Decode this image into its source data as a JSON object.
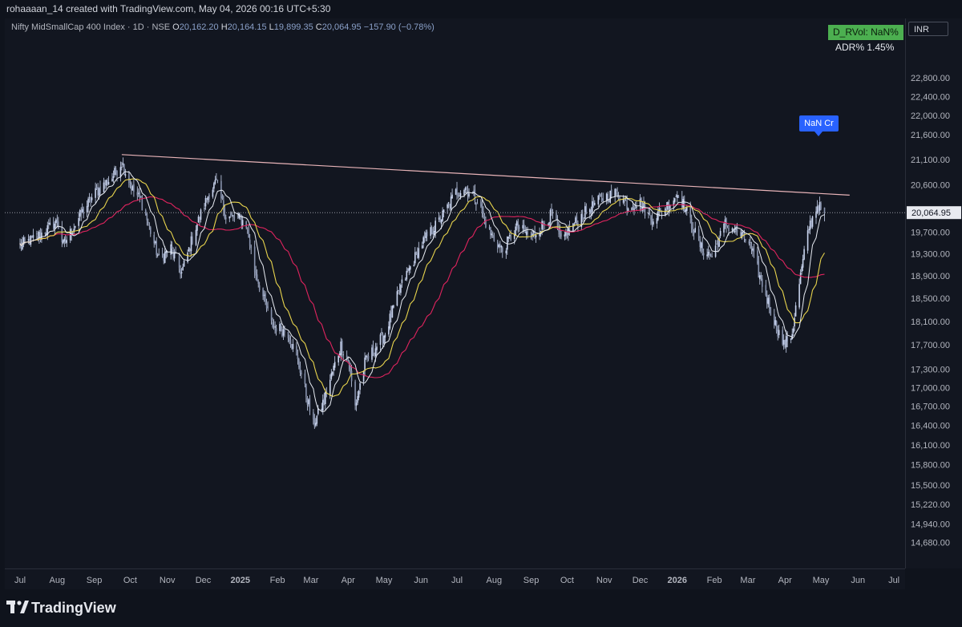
{
  "header": {
    "author_line": "rohaaaan_14 created with TradingView.com, May 04, 2026 00:16 UTC+5:30"
  },
  "legend": {
    "symbol": "Nifty MidSmallCap 400 Index · 1D · NSE",
    "open_label": "O",
    "open_value": "20,162.20",
    "high_label": "H",
    "high_value": "20,164.15",
    "low_label": "L",
    "low_value": "19,899.35",
    "close_label": "C",
    "close_value": "20,064.95",
    "change": "−157.90 (−0.78%)"
  },
  "currency": "INR",
  "indicators": {
    "rvol_badge": "D_RVol: NaN%",
    "adr_text": "ADR%  1.45%",
    "volume_label": "NaN Cr"
  },
  "last_price_label": "20,064.95",
  "footer": {
    "brand": "TradingView"
  },
  "colors": {
    "background": "#121620",
    "candle": "#c9d4ee",
    "sma_fast": "#e8ecf3",
    "sma_mid": "#e8d44d",
    "sma_slow": "#e0245e",
    "trendline": "#e8b4b8",
    "last_price_line": "#9598a1",
    "badge_green": "#4caf50",
    "badge_blue": "#2962ff"
  },
  "chart_data": {
    "type": "candlestick",
    "title": "Nifty MidSmallCap 400 Index · 1D · NSE",
    "y_ticks": [
      "22,800.00",
      "22,400.00",
      "22,000.00",
      "21,600.00",
      "21,100.00",
      "20,600.00",
      "19,700.00",
      "19,300.00",
      "18,900.00",
      "18,500.00",
      "18,100.00",
      "17,700.00",
      "17,300.00",
      "17,000.00",
      "16,700.00",
      "16,400.00",
      "16,100.00",
      "15,800.00",
      "15,500.00",
      "15,220.00",
      "14,940.00",
      "14,680.00"
    ],
    "x_ticks": [
      "Jul",
      "Aug",
      "Sep",
      "Oct",
      "Nov",
      "Dec",
      "2025",
      "Feb",
      "Mar",
      "Apr",
      "May",
      "Jun",
      "Jul",
      "Aug",
      "Sep",
      "Oct",
      "Nov",
      "Dec",
      "2026",
      "Feb",
      "Mar",
      "Apr",
      "May",
      "Jun",
      "Jul"
    ],
    "y_scale": "log",
    "trendline": [
      {
        "date": "2024-09-24",
        "price": 21200
      },
      {
        "date": "2026-05-25",
        "price": 20400
      }
    ],
    "last_close": 20064.95,
    "closes": [
      {
        "date": "2024-07-01",
        "close": 19450
      },
      {
        "date": "2024-07-15",
        "close": 19600
      },
      {
        "date": "2024-08-01",
        "close": 19900
      },
      {
        "date": "2024-08-06",
        "close": 19450
      },
      {
        "date": "2024-08-20",
        "close": 20000
      },
      {
        "date": "2024-09-02",
        "close": 20450
      },
      {
        "date": "2024-09-16",
        "close": 20750
      },
      {
        "date": "2024-09-24",
        "close": 21050
      },
      {
        "date": "2024-10-03",
        "close": 20500
      },
      {
        "date": "2024-10-10",
        "close": 20300
      },
      {
        "date": "2024-10-25",
        "close": 19200
      },
      {
        "date": "2024-11-04",
        "close": 19400
      },
      {
        "date": "2024-11-13",
        "close": 18950
      },
      {
        "date": "2024-11-25",
        "close": 19800
      },
      {
        "date": "2024-12-06",
        "close": 20450
      },
      {
        "date": "2024-12-12",
        "close": 20650
      },
      {
        "date": "2024-12-20",
        "close": 20000
      },
      {
        "date": "2025-01-01",
        "close": 19950
      },
      {
        "date": "2025-01-06",
        "close": 19850
      },
      {
        "date": "2025-01-13",
        "close": 19000
      },
      {
        "date": "2025-01-27",
        "close": 18050
      },
      {
        "date": "2025-02-10",
        "close": 17900
      },
      {
        "date": "2025-02-20",
        "close": 17300
      },
      {
        "date": "2025-03-03",
        "close": 16400
      },
      {
        "date": "2025-03-12",
        "close": 16800
      },
      {
        "date": "2025-03-26",
        "close": 17700
      },
      {
        "date": "2025-04-01",
        "close": 17450
      },
      {
        "date": "2025-04-07",
        "close": 16700
      },
      {
        "date": "2025-04-15",
        "close": 17400
      },
      {
        "date": "2025-05-02",
        "close": 17900
      },
      {
        "date": "2025-05-15",
        "close": 18700
      },
      {
        "date": "2025-06-02",
        "close": 19500
      },
      {
        "date": "2025-06-16",
        "close": 19900
      },
      {
        "date": "2025-06-30",
        "close": 20450
      },
      {
        "date": "2025-07-08",
        "close": 20550
      },
      {
        "date": "2025-07-18",
        "close": 20300
      },
      {
        "date": "2025-07-28",
        "close": 19700
      },
      {
        "date": "2025-08-08",
        "close": 19350
      },
      {
        "date": "2025-08-20",
        "close": 19800
      },
      {
        "date": "2025-09-01",
        "close": 19600
      },
      {
        "date": "2025-09-19",
        "close": 20050
      },
      {
        "date": "2025-09-26",
        "close": 19500
      },
      {
        "date": "2025-10-01",
        "close": 19700
      },
      {
        "date": "2025-10-15",
        "close": 20050
      },
      {
        "date": "2025-10-31",
        "close": 20350
      },
      {
        "date": "2025-11-12",
        "close": 20450
      },
      {
        "date": "2025-11-21",
        "close": 20200
      },
      {
        "date": "2025-12-01",
        "close": 20250
      },
      {
        "date": "2025-12-10",
        "close": 19950
      },
      {
        "date": "2025-12-22",
        "close": 20150
      },
      {
        "date": "2026-01-02",
        "close": 20450
      },
      {
        "date": "2026-01-12",
        "close": 19900
      },
      {
        "date": "2026-01-21",
        "close": 19400
      },
      {
        "date": "2026-01-30",
        "close": 19250
      },
      {
        "date": "2026-02-10",
        "close": 19850
      },
      {
        "date": "2026-02-20",
        "close": 19700
      },
      {
        "date": "2026-03-02",
        "close": 19500
      },
      {
        "date": "2026-03-13",
        "close": 18750
      },
      {
        "date": "2026-03-24",
        "close": 18050
      },
      {
        "date": "2026-03-31",
        "close": 17700
      },
      {
        "date": "2026-04-07",
        "close": 17900
      },
      {
        "date": "2026-04-14",
        "close": 18900
      },
      {
        "date": "2026-04-21",
        "close": 19800
      },
      {
        "date": "2026-04-28",
        "close": 20200
      },
      {
        "date": "2026-05-04",
        "close": 20065
      }
    ]
  }
}
